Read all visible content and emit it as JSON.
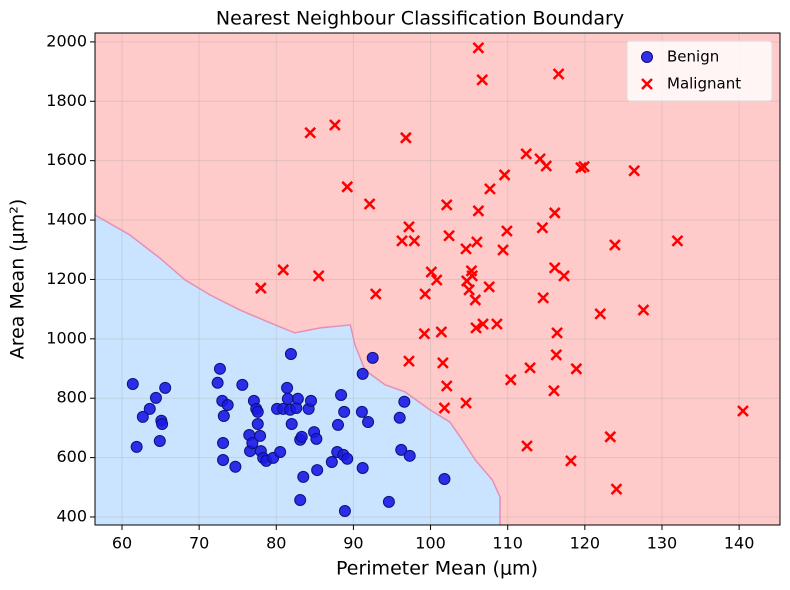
{
  "chart_data": {
    "type": "scatter",
    "title": "Nearest Neighbour Classification Boundary",
    "x_label": "Perimeter Mean (μm)",
    "y_label": "Area Mean (μm²)",
    "xlim": [
      56.5,
      145.3
    ],
    "ylim": [
      373,
      2030
    ],
    "xticks": [
      60,
      70,
      80,
      90,
      100,
      110,
      120,
      130,
      140
    ],
    "yticks": [
      400,
      600,
      800,
      1000,
      1200,
      1400,
      1600,
      1800,
      2000
    ],
    "grid": true,
    "legend_position": "upper-right",
    "background_color": "#ffcaca",
    "decision_region": {
      "color": "#cae4ff",
      "line_color": "#e58fb6",
      "x": [
        56.5,
        61.0,
        64.9,
        68.2,
        71.4,
        75.3,
        79.2,
        82.4,
        85.7,
        89.6,
        90.2,
        91.5,
        94.1,
        96.7,
        99.9,
        102.5,
        104.1,
        105.8,
        108.0,
        109.0,
        109.0
      ],
      "y": [
        1417,
        1350,
        1272,
        1198,
        1148,
        1097,
        1054,
        1020,
        1037,
        1047,
        980,
        895,
        845,
        821,
        761,
        720,
        660,
        592,
        525,
        468,
        373
      ]
    },
    "series": [
      {
        "name": "Benign",
        "color": "#1a1ae6",
        "edge_color": "#10107a",
        "marker": "o",
        "x": [
          61.4,
          61.9,
          62.7,
          63.6,
          64.4,
          64.9,
          65.1,
          65.2,
          65.6,
          72.4,
          72.7,
          73.0,
          73.2,
          73.1,
          73.1,
          73.7,
          74.7,
          75.6,
          76.5,
          76.6,
          76.9,
          77.1,
          77.4,
          77.6,
          77.6,
          77.9,
          78.0,
          78.3,
          78.7,
          79.6,
          80.1,
          80.5,
          80.9,
          81.4,
          81.5,
          81.8,
          81.9,
          82.0,
          82.6,
          82.8,
          83.1,
          83.3,
          83.5,
          83.1,
          84.2,
          84.5,
          84.9,
          85.2,
          85.3,
          87.2,
          87.9,
          88.0,
          88.4,
          88.7,
          88.9,
          88.8,
          89.2,
          91.1,
          91.2,
          91.2,
          91.9,
          92.5,
          94.6,
          96.0,
          96.2,
          96.6,
          97.3,
          101.8
        ],
        "y": [
          848,
          636,
          737,
          764,
          801,
          656,
          724,
          713,
          835,
          852,
          899,
          791,
          740,
          649,
          592,
          777,
          569,
          845,
          676,
          622,
          649,
          791,
          764,
          754,
          713,
          673,
          622,
          599,
          589,
          599,
          764,
          619,
          764,
          835,
          798,
          761,
          949,
          713,
          767,
          798,
          660,
          670,
          535,
          457,
          764,
          791,
          686,
          663,
          558,
          585,
          619,
          710,
          811,
          609,
          420,
          754,
          596,
          754,
          882,
          565,
          720,
          936,
          451,
          734,
          626,
          788,
          606,
          528
        ]
      },
      {
        "name": "Malignant",
        "color": "#ff0000",
        "marker": "x",
        "x": [
          78.0,
          80.9,
          84.4,
          85.5,
          87.6,
          89.2,
          92.1,
          92.9,
          96.3,
          96.8,
          97.2,
          97.2,
          97.9,
          99.2,
          99.3,
          100.1,
          100.8,
          101.4,
          101.6,
          101.8,
          102.1,
          102.1,
          102.4,
          104.6,
          104.6,
          104.7,
          105.0,
          105.3,
          105.4,
          105.8,
          105.9,
          106.2,
          106.2,
          106.0,
          106.7,
          106.8,
          107.6,
          107.7,
          108.6,
          109.4,
          109.6,
          109.9,
          110.4,
          112.4,
          112.9,
          112.5,
          114.2,
          114.5,
          114.6,
          115.0,
          116.0,
          116.1,
          116.1,
          116.3,
          116.4,
          116.6,
          117.3,
          118.2,
          118.9,
          119.5,
          119.9,
          122.0,
          123.9,
          123.3,
          124.1,
          126.4,
          127.6,
          132.0,
          140.5
        ],
        "y": [
          1171,
          1232,
          1694,
          1212,
          1720,
          1512,
          1454,
          1151,
          1330,
          1677,
          1377,
          925,
          1330,
          1017,
          1151,
          1225,
          1198,
          1023,
          919,
          767,
          841,
          1451,
          1347,
          784,
          1303,
          1195,
          1165,
          1229,
          1212,
          1131,
          1037,
          1980,
          1431,
          1326,
          1872,
          1050,
          1175,
          1505,
          1050,
          1299,
          1552,
          1363,
          862,
          1623,
          902,
          639,
          1606,
          1374,
          1138,
          1582,
          825,
          1424,
          1239,
          946,
          1020,
          1892,
          1212,
          589,
          899,
          1576,
          1580,
          1084,
          1316,
          670,
          494,
          1566,
          1097,
          1330,
          757
        ]
      }
    ]
  }
}
